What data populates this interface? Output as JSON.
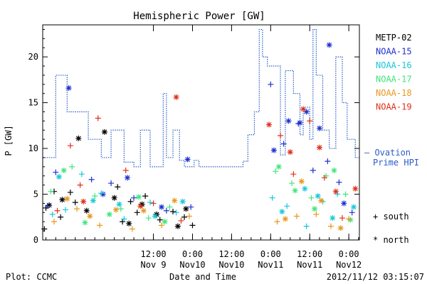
{
  "chart_data": {
    "type": "scatter",
    "title": "Hemispheric Power [GW]",
    "xlabel": "Date and Time",
    "ylabel": "P [GW]",
    "xlim": [
      "2012-11-08T02:00",
      "2012-11-12T03:15"
    ],
    "ylim": [
      0,
      23.5
    ],
    "yticks": [
      0,
      5,
      10,
      15,
      20
    ],
    "xtick_labels": [
      {
        "time": "12:00",
        "date": "Nov 9",
        "t": "2012-11-09T12:00"
      },
      {
        "time": "0:00",
        "date": "Nov10",
        "t": "2012-11-10T00:00"
      },
      {
        "time": "12:00",
        "date": "Nov10",
        "t": "2012-11-10T12:00"
      },
      {
        "time": "0:00",
        "date": "Nov11",
        "t": "2012-11-11T00:00"
      },
      {
        "time": "12:00",
        "date": "Nov11",
        "t": "2012-11-11T12:00"
      },
      {
        "time": "0:00",
        "date": "Nov12",
        "t": "2012-11-12T00:00"
      }
    ],
    "legend": {
      "position": "right",
      "entries": [
        {
          "name": "METP-02",
          "color": "#000000"
        },
        {
          "name": "NOAA-15",
          "color": "#1f2fd1"
        },
        {
          "name": "NOAA-16",
          "color": "#18c8d8"
        },
        {
          "name": "NOAA-17",
          "color": "#3ee67a"
        },
        {
          "name": "NOAA-18",
          "color": "#e8981e"
        },
        {
          "name": "NOAA-19",
          "color": "#e03018"
        }
      ]
    },
    "marker_legend": {
      "plus": "+ south",
      "star": "* north"
    },
    "ovation_label": [
      "— Ovation",
      "Prime HPI"
    ],
    "ovation_color": "#2a5cc8",
    "series": [
      {
        "name": "Ovation Prime HPI",
        "type": "step",
        "color": "#2a5cc8",
        "points": [
          [
            "2012-11-08T02:00",
            9
          ],
          [
            "2012-11-08T06:00",
            18
          ],
          [
            "2012-11-08T09:30",
            14
          ],
          [
            "2012-11-08T16:00",
            11
          ],
          [
            "2012-11-08T20:00",
            9
          ],
          [
            "2012-11-08T23:00",
            12
          ],
          [
            "2012-11-09T03:00",
            8.5
          ],
          [
            "2012-11-09T06:00",
            8
          ],
          [
            "2012-11-09T08:00",
            12
          ],
          [
            "2012-11-09T11:00",
            8
          ],
          [
            "2012-11-09T15:00",
            16
          ],
          [
            "2012-11-09T16:00",
            9
          ],
          [
            "2012-11-09T18:00",
            12
          ],
          [
            "2012-11-09T20:00",
            8.7
          ],
          [
            "2012-11-09T21:30",
            8
          ],
          [
            "2012-11-10T00:30",
            8.7
          ],
          [
            "2012-11-10T02:00",
            8
          ],
          [
            "2012-11-10T15:30",
            8.6
          ],
          [
            "2012-11-10T17:00",
            11.5
          ],
          [
            "2012-11-10T19:00",
            14
          ],
          [
            "2012-11-10T20:30",
            23
          ],
          [
            "2012-11-10T21:30",
            20
          ],
          [
            "2012-11-10T23:00",
            19
          ],
          [
            "2012-11-11T03:00",
            9.3
          ],
          [
            "2012-11-11T04:30",
            18.5
          ],
          [
            "2012-11-11T07:00",
            16
          ],
          [
            "2012-11-11T09:00",
            11.5
          ],
          [
            "2012-11-11T10:00",
            14.5
          ],
          [
            "2012-11-11T12:00",
            11
          ],
          [
            "2012-11-11T13:00",
            23
          ],
          [
            "2012-11-11T14:00",
            18
          ],
          [
            "2012-11-11T16:00",
            12
          ],
          [
            "2012-11-11T18:00",
            10
          ],
          [
            "2012-11-11T20:00",
            20
          ],
          [
            "2012-11-11T22:00",
            15
          ],
          [
            "2012-11-11T23:30",
            11
          ],
          [
            "2012-11-12T02:00",
            9
          ]
        ]
      },
      {
        "name": "METP-02",
        "color": "#000000",
        "south": [
          [
            "2012-11-08T02:30",
            1.2
          ],
          [
            "2012-11-08T03:00",
            3.5
          ],
          [
            "2012-11-08T05:30",
            5.3
          ],
          [
            "2012-11-08T07:30",
            2.5
          ],
          [
            "2012-11-08T10:30",
            5.2
          ],
          [
            "2012-11-08T12:00",
            4.1
          ],
          [
            "2012-11-09T01:00",
            5.8
          ],
          [
            "2012-11-09T02:30",
            2.0
          ],
          [
            "2012-11-09T05:00",
            4.2
          ],
          [
            "2012-11-09T07:00",
            3.0
          ],
          [
            "2012-11-09T09:30",
            4.8
          ],
          [
            "2012-11-09T14:00",
            2.2
          ],
          [
            "2012-11-09T18:00",
            3.1
          ],
          [
            "2012-11-09T21:30",
            2.5
          ],
          [
            "2012-11-10T00:00",
            1.6
          ]
        ],
        "north": [
          [
            "2012-11-08T04:00",
            3.8
          ],
          [
            "2012-11-08T08:00",
            4.4
          ],
          [
            "2012-11-08T13:00",
            11.1
          ],
          [
            "2012-11-08T15:30",
            3.2
          ],
          [
            "2012-11-08T21:00",
            11.8
          ],
          [
            "2012-11-09T00:00",
            4.6
          ],
          [
            "2012-11-09T04:30",
            1.8
          ],
          [
            "2012-11-09T08:30",
            3.9
          ],
          [
            "2012-11-09T13:00",
            2.8
          ],
          [
            "2012-11-09T19:30",
            1.5
          ],
          [
            "2012-11-09T22:00",
            3.4
          ]
        ]
      },
      {
        "name": "NOAA-15",
        "color": "#1f2fd1",
        "south": [
          [
            "2012-11-08T03:30",
            3.7
          ],
          [
            "2012-11-08T06:00",
            7.4
          ],
          [
            "2012-11-08T17:00",
            6.6
          ],
          [
            "2012-11-08T23:00",
            6.2
          ],
          [
            "2012-11-09T06:00",
            4.6
          ],
          [
            "2012-11-09T16:00",
            3.2
          ],
          [
            "2012-11-09T23:30",
            3.6
          ],
          [
            "2012-11-11T00:00",
            17.0
          ],
          [
            "2012-11-11T04:00",
            10.5
          ],
          [
            "2012-11-11T08:30",
            12.7
          ],
          [
            "2012-11-11T13:00",
            7.6
          ],
          [
            "2012-11-11T17:30",
            8.6
          ],
          [
            "2012-11-11T21:00",
            6.3
          ],
          [
            "2012-11-12T01:00",
            3.0
          ]
        ],
        "north": [
          [
            "2012-11-08T10:00",
            16.6
          ],
          [
            "2012-11-08T20:30",
            5.0
          ],
          [
            "2012-11-09T04:00",
            6.8
          ],
          [
            "2012-11-09T14:30",
            3.6
          ],
          [
            "2012-11-09T22:30",
            8.8
          ],
          [
            "2012-11-11T01:00",
            9.8
          ],
          [
            "2012-11-11T05:30",
            13.0
          ],
          [
            "2012-11-11T09:00",
            12.8
          ],
          [
            "2012-11-11T11:00",
            14.0
          ],
          [
            "2012-11-11T15:00",
            12.2
          ],
          [
            "2012-11-11T18:00",
            21.3
          ],
          [
            "2012-11-11T22:30",
            4.0
          ]
        ]
      },
      {
        "name": "NOAA-16",
        "color": "#18c8d8",
        "south": [
          [
            "2012-11-08T05:00",
            2.8
          ],
          [
            "2012-11-08T09:00",
            3.3
          ],
          [
            "2012-11-08T14:00",
            7.2
          ],
          [
            "2012-11-08T20:00",
            5.1
          ],
          [
            "2012-11-09T03:00",
            2.3
          ],
          [
            "2012-11-09T11:00",
            4.1
          ],
          [
            "2012-11-09T19:00",
            3.0
          ],
          [
            "2012-11-11T00:30",
            4.6
          ],
          [
            "2012-11-11T05:00",
            3.7
          ],
          [
            "2012-11-11T11:00",
            1.5
          ],
          [
            "2012-11-11T16:00",
            4.2
          ],
          [
            "2012-11-11T20:30",
            5.0
          ]
        ],
        "north": [
          [
            "2012-11-08T07:00",
            6.9
          ],
          [
            "2012-11-08T17:30",
            4.3
          ],
          [
            "2012-11-09T01:30",
            3.9
          ],
          [
            "2012-11-09T12:30",
            2.6
          ],
          [
            "2012-11-09T21:00",
            4.2
          ],
          [
            "2012-11-11T03:30",
            3.1
          ],
          [
            "2012-11-11T10:30",
            5.6
          ],
          [
            "2012-11-11T14:30",
            4.8
          ],
          [
            "2012-11-11T19:00",
            2.4
          ],
          [
            "2012-11-12T01:30",
            3.6
          ]
        ]
      },
      {
        "name": "NOAA-17",
        "color": "#3ee67a",
        "south": [
          [
            "2012-11-08T04:30",
            5.3
          ],
          [
            "2012-11-08T11:00",
            8.0
          ],
          [
            "2012-11-08T18:00",
            4.8
          ],
          [
            "2012-11-09T02:00",
            3.4
          ],
          [
            "2012-11-09T10:30",
            2.4
          ],
          [
            "2012-11-09T17:00",
            3.6
          ],
          [
            "2012-11-11T01:30",
            7.5
          ],
          [
            "2012-11-11T06:30",
            6.2
          ],
          [
            "2012-11-11T12:30",
            4.6
          ],
          [
            "2012-11-11T17:00",
            7.0
          ],
          [
            "2012-11-11T23:00",
            5.0
          ]
        ],
        "north": [
          [
            "2012-11-08T08:30",
            7.6
          ],
          [
            "2012-11-08T15:00",
            1.9
          ],
          [
            "2012-11-08T22:30",
            2.8
          ],
          [
            "2012-11-09T07:30",
            4.7
          ],
          [
            "2012-11-09T15:30",
            2.0
          ],
          [
            "2012-11-11T02:30",
            8.0
          ],
          [
            "2012-11-11T07:30",
            5.4
          ],
          [
            "2012-11-11T13:30",
            3.4
          ],
          [
            "2012-11-11T19:30",
            7.6
          ],
          [
            "2012-11-12T00:30",
            2.2
          ]
        ]
      },
      {
        "name": "NOAA-18",
        "color": "#e8981e",
        "south": [
          [
            "2012-11-08T05:30",
            2.0
          ],
          [
            "2012-11-08T12:30",
            3.4
          ],
          [
            "2012-11-08T19:30",
            1.6
          ],
          [
            "2012-11-09T05:30",
            1.2
          ],
          [
            "2012-11-09T14:30",
            1.6
          ],
          [
            "2012-11-09T23:00",
            2.6
          ],
          [
            "2012-11-11T02:00",
            2.0
          ],
          [
            "2012-11-11T08:00",
            2.6
          ],
          [
            "2012-11-11T14:00",
            2.8
          ],
          [
            "2012-11-11T18:30",
            1.5
          ],
          [
            "2012-11-12T00:00",
            2.3
          ]
        ],
        "north": [
          [
            "2012-11-08T09:30",
            4.5
          ],
          [
            "2012-11-08T16:30",
            2.6
          ],
          [
            "2012-11-09T00:30",
            3.3
          ],
          [
            "2012-11-09T09:00",
            3.2
          ],
          [
            "2012-11-09T18:30",
            4.3
          ],
          [
            "2012-11-11T04:30",
            2.3
          ],
          [
            "2012-11-11T09:30",
            6.4
          ],
          [
            "2012-11-11T15:30",
            4.3
          ],
          [
            "2012-11-11T21:30",
            1.3
          ]
        ]
      },
      {
        "name": "NOAA-19",
        "color": "#e03018",
        "south": [
          [
            "2012-11-08T06:30",
            3.2
          ],
          [
            "2012-11-08T10:30",
            10.3
          ],
          [
            "2012-11-08T13:30",
            6.0
          ],
          [
            "2012-11-08T19:00",
            13.3
          ],
          [
            "2012-11-09T03:30",
            7.6
          ],
          [
            "2012-11-09T12:00",
            4.0
          ],
          [
            "2012-11-09T20:30",
            2.1
          ],
          [
            "2012-11-11T03:00",
            11.4
          ],
          [
            "2012-11-11T07:00",
            7.2
          ],
          [
            "2012-11-11T12:00",
            13.0
          ],
          [
            "2012-11-11T16:30",
            6.8
          ],
          [
            "2012-11-11T22:00",
            2.4
          ]
        ],
        "north": [
          [
            "2012-11-08T14:30",
            4.2
          ],
          [
            "2012-11-09T08:00",
            3.7
          ],
          [
            "2012-11-09T19:00",
            15.6
          ],
          [
            "2012-11-10T23:30",
            12.6
          ],
          [
            "2012-11-11T06:00",
            9.6
          ],
          [
            "2012-11-11T10:00",
            14.3
          ],
          [
            "2012-11-11T15:00",
            10.1
          ],
          [
            "2012-11-11T20:00",
            5.3
          ],
          [
            "2012-11-12T02:00",
            5.6
          ]
        ]
      }
    ]
  },
  "footer": {
    "left": "Plot: CCMC",
    "center": "Date and Time",
    "right": "2012/11/12 03:15:07"
  }
}
